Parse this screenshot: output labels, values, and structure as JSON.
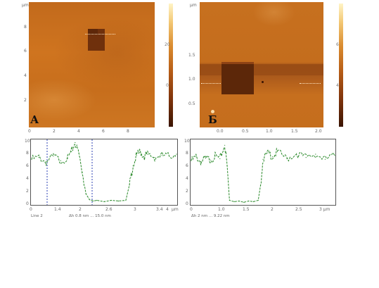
{
  "figure": {
    "panel_a": {
      "letter": "А",
      "axis_unit": "µm",
      "x_ticks": [
        "0",
        "2",
        "4",
        "6",
        "8"
      ],
      "y_ticks": [
        "8",
        "6",
        "4",
        "2"
      ],
      "colorbar_ticks": [
        "20",
        "0"
      ],
      "colors": {
        "background": "#c96d1c",
        "hole": "#6b2e0b",
        "colorbar_top": "#fff5c8",
        "colorbar_bottom": "#3a1402"
      }
    },
    "panel_b": {
      "letter": "Б",
      "axis_unit": "µm",
      "x_ticks": [
        "0.0",
        "0.5",
        "1.0",
        "1.5",
        "2.0"
      ],
      "y_ticks": [
        "1.5",
        "1.0",
        "0.5"
      ],
      "colorbar_ticks": [
        "6",
        "4"
      ],
      "colors": {
        "background": "#c06a1a",
        "hole": "#5a2608",
        "colorbar_top": "#fff5c8",
        "colorbar_bottom": "#3a1402"
      }
    },
    "profile_a": {
      "y_ticks": [
        "10",
        "8",
        "6",
        "4",
        "2",
        "0"
      ],
      "x_ticks": [
        "0",
        "1.4",
        "2",
        "2.6",
        "3",
        "3.4",
        "4"
      ],
      "x_unit": "µm",
      "caption_left": "Line 2",
      "caption_right": "Δh 0.8 nm ... 15.0 nm",
      "line_color": "#2a8a2a",
      "marker_color": "#2b3fb3"
    },
    "profile_b": {
      "y_ticks": [
        "10",
        "8",
        "6",
        "4",
        "2",
        "0"
      ],
      "x_ticks": [
        "0",
        "1.0",
        "1.5",
        "2",
        "2.5",
        "3 µm"
      ],
      "caption_left": "Δh 2 nm ... 9.22 nm",
      "line_color": "#2a8a2a"
    }
  },
  "chart_data": [
    {
      "type": "line",
      "title": "",
      "xlabel": "µm",
      "ylabel": "",
      "ylim": [
        0,
        10
      ],
      "xlim": [
        0,
        4
      ],
      "series": [
        {
          "x": [
            0.0,
            0.2,
            0.4,
            0.6,
            0.8,
            1.0,
            1.1,
            1.2,
            1.3,
            1.4,
            1.5,
            1.6,
            1.7,
            1.8,
            2.0,
            2.2,
            2.4,
            2.6,
            2.7,
            2.8,
            2.9,
            3.0,
            3.1,
            3.2,
            3.4,
            3.6,
            3.8,
            4.0
          ],
          "values": [
            7.0,
            7.3,
            6.6,
            7.5,
            6.8,
            7.2,
            8.2,
            9.6,
            8.0,
            5.0,
            1.6,
            0.7,
            0.5,
            0.6,
            0.4,
            0.6,
            0.5,
            0.6,
            3.0,
            6.0,
            7.6,
            8.2,
            7.4,
            7.8,
            7.3,
            7.6,
            7.5,
            7.8
          ]
        }
      ]
    },
    {
      "type": "line",
      "title": "",
      "xlabel": "µm",
      "ylabel": "",
      "ylim": [
        0,
        10
      ],
      "xlim": [
        0,
        3
      ],
      "series": [
        {
          "x": [
            0.0,
            0.1,
            0.2,
            0.3,
            0.4,
            0.5,
            0.6,
            0.7,
            0.75,
            0.8,
            0.9,
            1.0,
            1.1,
            1.2,
            1.3,
            1.4,
            1.45,
            1.5,
            1.6,
            1.7,
            1.8,
            2.0,
            2.2,
            2.4,
            2.6,
            2.8,
            3.0
          ],
          "values": [
            6.8,
            7.4,
            6.6,
            7.2,
            6.9,
            7.5,
            7.1,
            9.2,
            6.0,
            0.6,
            0.4,
            0.5,
            0.3,
            0.5,
            0.4,
            0.6,
            3.0,
            7.0,
            8.0,
            7.4,
            8.2,
            7.1,
            7.9,
            7.3,
            7.8,
            7.0,
            7.6
          ]
        }
      ]
    }
  ]
}
